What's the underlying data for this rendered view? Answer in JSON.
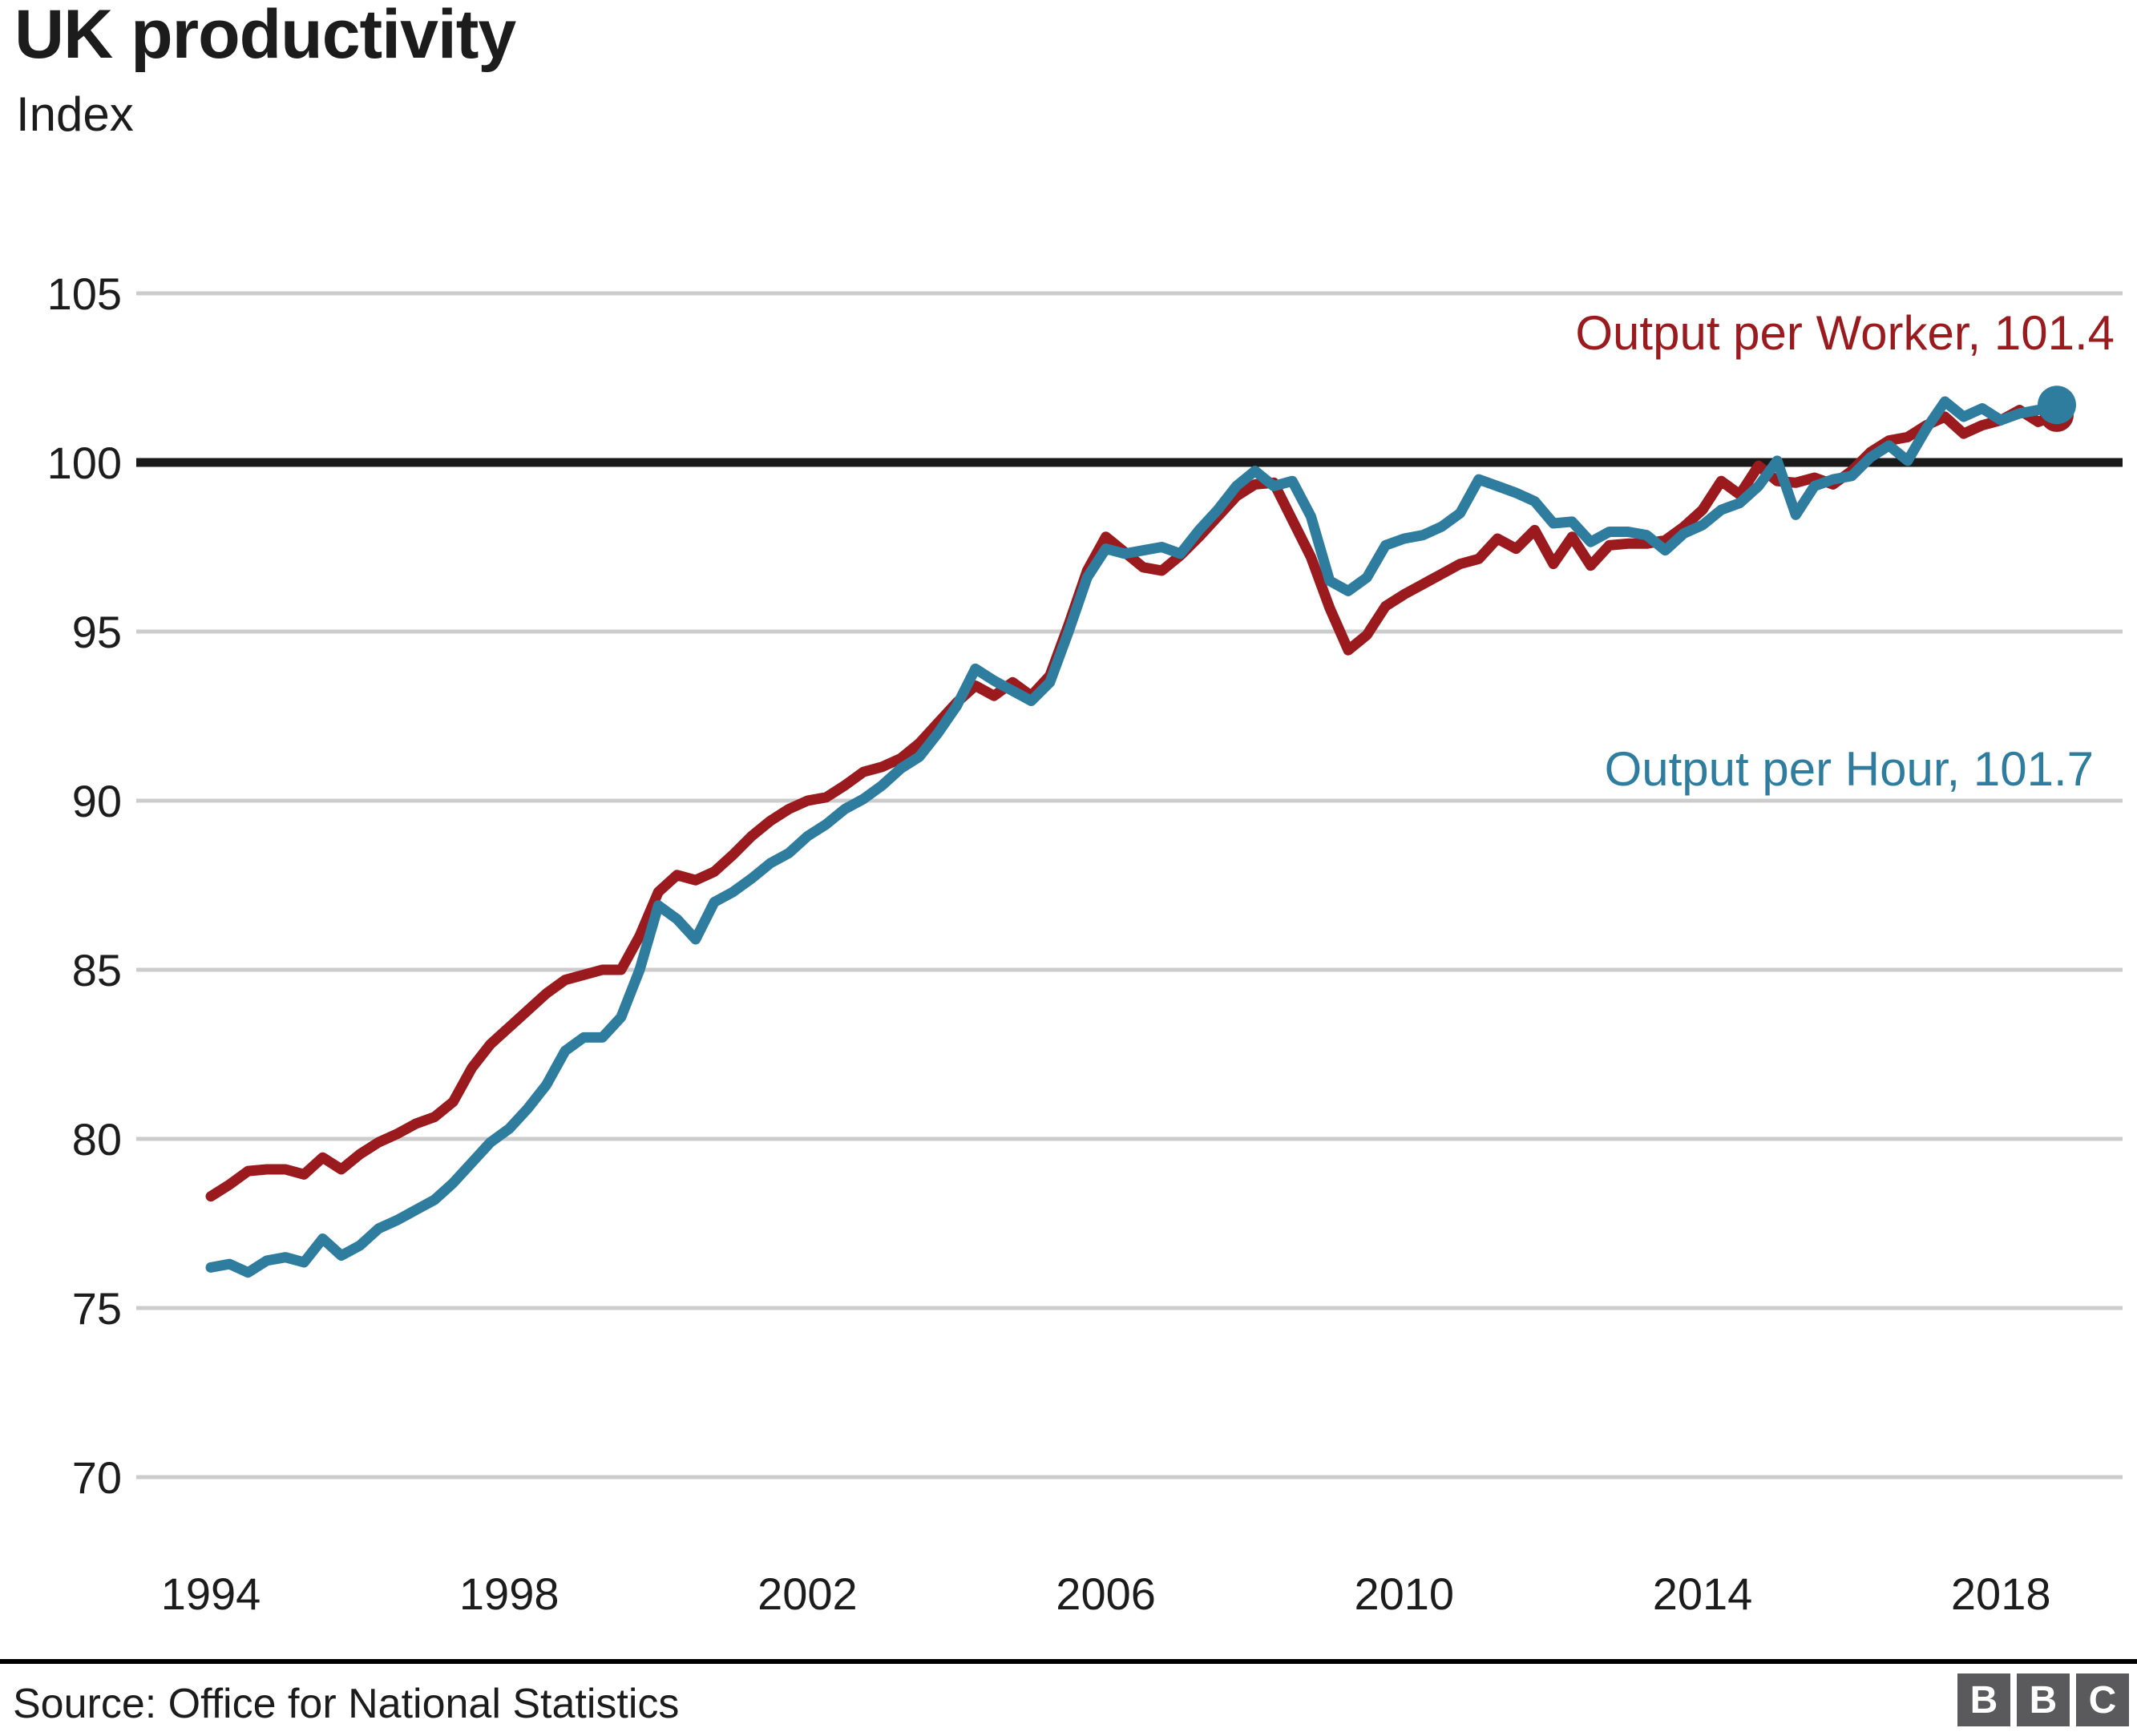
{
  "header": {
    "title": "UK productivity",
    "subtitle": "Index"
  },
  "footer": {
    "source": "Source: Office for National Statistics",
    "logo_blocks": [
      "B",
      "B",
      "C"
    ]
  },
  "chart_data": {
    "type": "line",
    "title": "UK productivity",
    "ylabel": "Index",
    "xlabel": "",
    "x_start_year": 1994,
    "x_step_years": 0.25,
    "x_tick_labels": [
      "1994",
      "1998",
      "2002",
      "2006",
      "2010",
      "2014",
      "2018"
    ],
    "x_tick_years": [
      1994,
      1998,
      2002,
      2006,
      2010,
      2014,
      2018
    ],
    "y_tick_labels": [
      "105",
      "100",
      "95",
      "90",
      "85",
      "80",
      "75",
      "70"
    ],
    "y_ticks": [
      105,
      100,
      95,
      90,
      85,
      80,
      75,
      70
    ],
    "ylim": [
      70,
      105
    ],
    "baseline_value": 100,
    "grid": "horizontal",
    "legend_position": "inline-annotations",
    "colors": {
      "output_per_worker": "#9a1a1e",
      "output_per_hour": "#2e7d9e",
      "baseline": "#1a1a1a",
      "gridline": "#cccccc",
      "text": "#1c1c1c"
    },
    "series": [
      {
        "name": "Output per Worker",
        "label": "Output per Worker, 101.4",
        "latest_value": 101.4,
        "color_key": "output_per_worker",
        "end_dot": true,
        "values": [
          78.3,
          78.65,
          79.05,
          79.1,
          79.1,
          78.95,
          79.45,
          79.1,
          79.55,
          79.9,
          80.15,
          80.45,
          80.65,
          81.1,
          82.1,
          82.8,
          83.3,
          83.8,
          84.3,
          84.7,
          84.85,
          85.0,
          85.0,
          86.0,
          87.3,
          87.8,
          87.65,
          87.9,
          88.4,
          88.95,
          89.4,
          89.75,
          90.0,
          90.1,
          90.45,
          90.85,
          91.0,
          91.25,
          91.7,
          92.3,
          92.9,
          93.4,
          93.1,
          93.5,
          93.1,
          93.7,
          95.2,
          96.8,
          97.8,
          97.35,
          96.9,
          96.8,
          97.25,
          97.8,
          98.4,
          99.0,
          99.35,
          99.4,
          98.3,
          97.2,
          95.7,
          94.45,
          94.9,
          95.75,
          96.1,
          96.4,
          96.7,
          97.0,
          97.15,
          97.75,
          97.45,
          98.0,
          97.0,
          97.8,
          96.95,
          97.55,
          97.6,
          97.6,
          97.7,
          98.1,
          98.6,
          99.45,
          99.05,
          99.9,
          99.45,
          99.4,
          99.55,
          99.35,
          99.75,
          100.3,
          100.65,
          100.75,
          101.1,
          101.35,
          100.85,
          101.1,
          101.25,
          101.55,
          101.2,
          101.4
        ]
      },
      {
        "name": "Output per Hour",
        "label": "Output per Hour, 101.7",
        "latest_value": 101.7,
        "color_key": "output_per_hour",
        "end_dot": true,
        "values": [
          76.2,
          76.3,
          76.05,
          76.4,
          76.5,
          76.35,
          77.05,
          76.55,
          76.85,
          77.35,
          77.6,
          77.9,
          78.2,
          78.7,
          79.3,
          79.9,
          80.3,
          80.9,
          81.6,
          82.6,
          83.0,
          83.0,
          83.6,
          85.0,
          86.9,
          86.5,
          85.9,
          87.0,
          87.3,
          87.7,
          88.15,
          88.45,
          88.95,
          89.3,
          89.75,
          90.05,
          90.45,
          90.95,
          91.3,
          92.0,
          92.8,
          93.9,
          93.55,
          93.25,
          92.95,
          93.5,
          95.0,
          96.6,
          97.45,
          97.3,
          97.4,
          97.5,
          97.3,
          98.0,
          98.6,
          99.3,
          99.75,
          99.3,
          99.45,
          98.4,
          96.5,
          96.2,
          96.6,
          97.55,
          97.75,
          97.85,
          98.1,
          98.5,
          99.5,
          99.3,
          99.1,
          98.85,
          98.2,
          98.25,
          97.65,
          97.95,
          97.95,
          97.85,
          97.4,
          97.9,
          98.15,
          98.6,
          98.8,
          99.3,
          100.05,
          98.45,
          99.3,
          99.5,
          99.6,
          100.15,
          100.5,
          100.05,
          101.0,
          101.8,
          101.35,
          101.6,
          101.25,
          101.45,
          101.55,
          101.7
        ]
      }
    ]
  }
}
